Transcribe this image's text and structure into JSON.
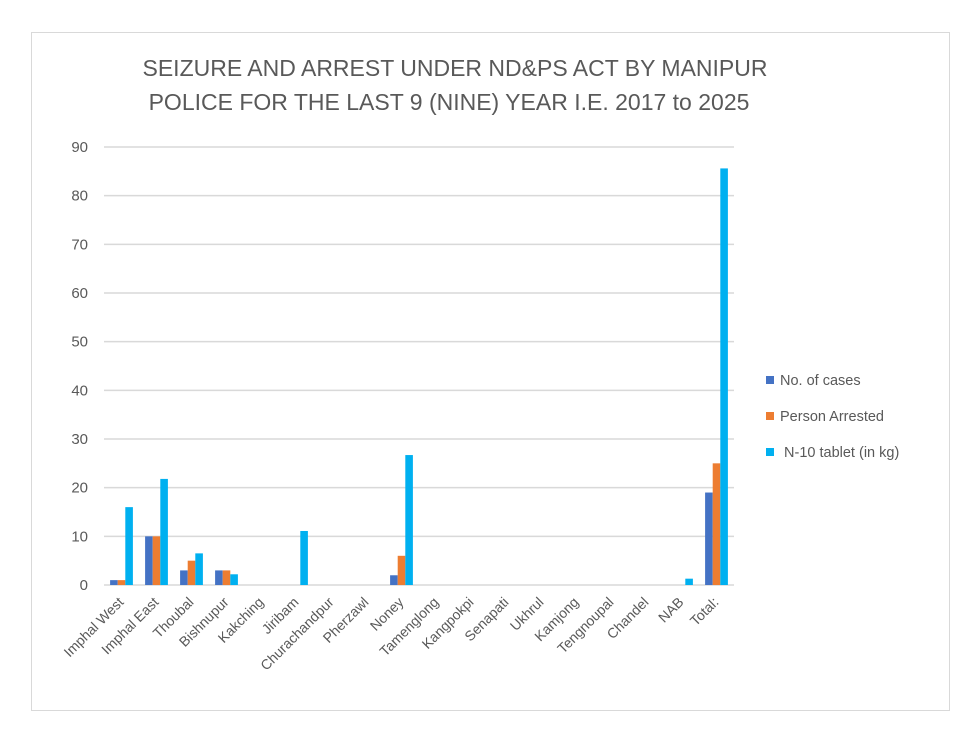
{
  "chart_data": {
    "type": "bar",
    "title": [
      "SEIZURE AND ARREST UNDER ND&PS ACT BY MANIPUR",
      "POLICE FOR THE LAST 9 (NINE) YEAR I.E. 2017 to 2025"
    ],
    "xlabel": "",
    "ylabel": "",
    "ylim": [
      0,
      90
    ],
    "yticks": [
      "0",
      "10",
      "20",
      "30",
      "40",
      "50",
      "60",
      "70",
      "80",
      "90"
    ],
    "grid": true,
    "legend_position": "right",
    "categories": [
      "Imphal West",
      "Imphal East",
      "Thoubal",
      "Bishnupur",
      "Kakching",
      "Jiribam",
      "Churachandpur",
      "Pherzawl",
      "Noney",
      "Tamenglong",
      "Kangpokpi",
      "Senapati",
      "Ukhrul",
      "Kamjong",
      "Tengnoupal",
      "Chandel",
      "NAB",
      "Total:"
    ],
    "series": [
      {
        "name": "No. of cases",
        "color": "#4472c4",
        "values": [
          1,
          10,
          3,
          3,
          0,
          0,
          0,
          0,
          2,
          0,
          0,
          0,
          0,
          0,
          0,
          0,
          0,
          19
        ]
      },
      {
        "name": "Person Arrested",
        "color": "#ed7d31",
        "values": [
          1,
          10,
          5,
          3,
          0,
          0,
          0,
          0,
          6,
          0,
          0,
          0,
          0,
          0,
          0,
          0,
          0,
          25
        ]
      },
      {
        "name": " N-10 tablet (in kg)",
        "color": "#00b0f0",
        "values": [
          16,
          21.8,
          6.5,
          2.2,
          0,
          11.1,
          0,
          0,
          26.7,
          0,
          0,
          0,
          0,
          0,
          0,
          0,
          1.3,
          85.6
        ]
      }
    ]
  }
}
